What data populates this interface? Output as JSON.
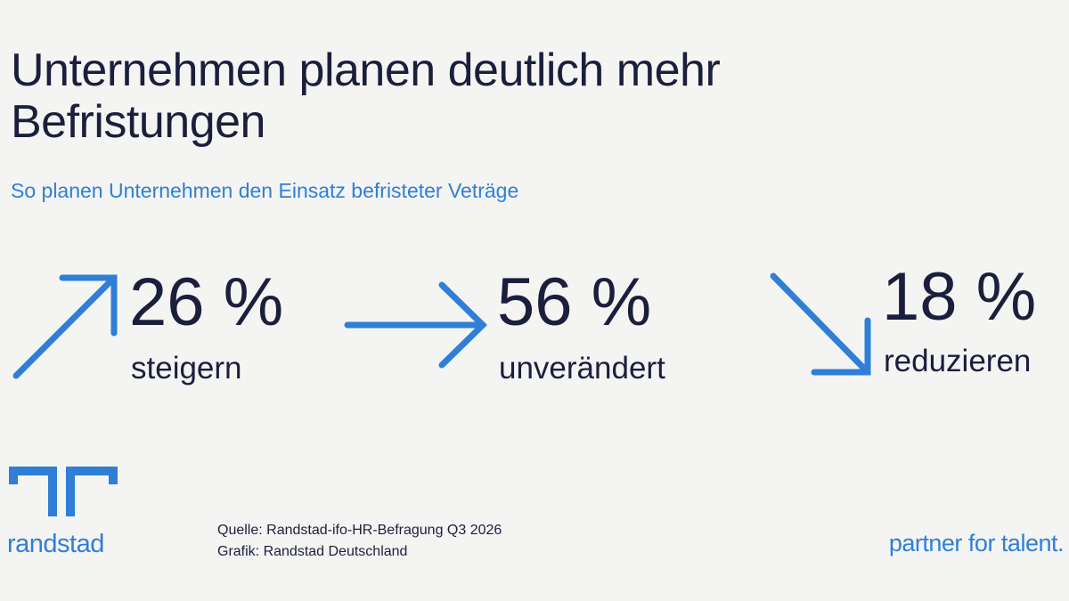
{
  "header": {
    "title_line1": "Unternehmen planen deutlich mehr",
    "title_line2": "Befristungen",
    "subtitle": "So planen Unternehmen den Einsatz befristeter Veträge"
  },
  "chart_data": {
    "type": "table",
    "unit": "%",
    "items": [
      {
        "value": 26,
        "value_text": "26 %",
        "label": "steigern",
        "direction": "up",
        "icon": "arrow-up-right-icon"
      },
      {
        "value": 56,
        "value_text": "56 %",
        "label": "unverändert",
        "direction": "flat",
        "icon": "arrow-right-icon"
      },
      {
        "value": 18,
        "value_text": "18 %",
        "label": "reduzieren",
        "direction": "down",
        "icon": "arrow-down-right-icon"
      }
    ]
  },
  "footer": {
    "logo_text": "randstad",
    "source_line1": "Quelle: Randstad-ifo-HR-Befragung Q3 2026",
    "source_line2": "Grafik: Randstad Deutschland",
    "tagline": "partner for talent."
  },
  "colors": {
    "background": "#f4f4f3",
    "text": "#1b1f3c",
    "accent": "#2f7fd7"
  }
}
